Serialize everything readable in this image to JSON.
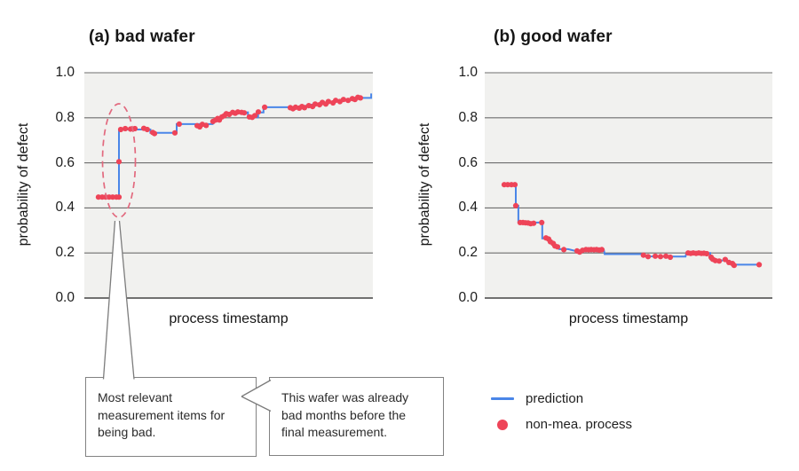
{
  "colors": {
    "prediction": "#4a86e8",
    "non_mea": "#ee4458",
    "highlight_ellipse": "#e2697e",
    "plot_background": "#f1f1ef",
    "gridline": "#6e6e6e",
    "baseline": "#5d5d5d",
    "callout_border": "#828282"
  },
  "legend": {
    "items": [
      {
        "label": "prediction",
        "marker": "line"
      },
      {
        "label": "non-mea. process",
        "marker": "dot"
      }
    ]
  },
  "callouts": [
    {
      "lines": [
        "Most relevant",
        "measurement items for",
        "being bad."
      ]
    },
    {
      "lines": [
        "This wafer was already",
        "bad months before the",
        "final measurement."
      ]
    }
  ],
  "chart_data": [
    {
      "id": "bad-wafer",
      "type": "line",
      "title": "(a) bad wafer",
      "xlabel": "process timestamp",
      "ylabel": "probability of defect",
      "ylim": [
        0.0,
        1.0
      ],
      "yticks": [
        0.0,
        0.2,
        0.4,
        0.6,
        0.8,
        1.0
      ],
      "ytick_labels": [
        "0.0",
        "0.2",
        "0.4",
        "0.6",
        "0.8",
        "1.0"
      ],
      "x_encoding": "fraction of process timeline (x axis unlabeled)",
      "grid": "horizontal",
      "annotation": "dashed ellipse highlighting early jump from 0.45 to 0.75",
      "series": [
        {
          "name": "prediction",
          "type": "step-line",
          "points": [
            [
              0.049,
              0.448
            ],
            [
              0.12,
              0.448
            ],
            [
              0.12,
              0.748
            ],
            [
              0.229,
              0.748
            ],
            [
              0.229,
              0.733
            ],
            [
              0.32,
              0.733
            ],
            [
              0.32,
              0.772
            ],
            [
              0.445,
              0.772
            ],
            [
              0.458,
              0.79
            ],
            [
              0.477,
              0.803
            ],
            [
              0.495,
              0.815
            ],
            [
              0.511,
              0.822
            ],
            [
              0.567,
              0.824
            ],
            [
              0.567,
              0.802
            ],
            [
              0.602,
              0.802
            ],
            [
              0.602,
              0.824
            ],
            [
              0.621,
              0.824
            ],
            [
              0.621,
              0.847
            ],
            [
              0.714,
              0.847
            ],
            [
              0.732,
              0.843
            ],
            [
              0.754,
              0.85
            ],
            [
              0.778,
              0.856
            ],
            [
              0.8,
              0.862
            ],
            [
              0.822,
              0.861
            ],
            [
              0.84,
              0.868
            ],
            [
              0.862,
              0.868
            ],
            [
              0.877,
              0.877
            ],
            [
              0.902,
              0.877
            ],
            [
              0.917,
              0.883
            ],
            [
              0.938,
              0.886
            ],
            [
              0.954,
              0.888
            ],
            [
              0.994,
              0.888
            ],
            [
              0.994,
              0.908
            ]
          ]
        },
        {
          "name": "non-mea. process",
          "type": "scatter",
          "points": [
            [
              0.049,
              0.448
            ],
            [
              0.062,
              0.448
            ],
            [
              0.074,
              0.448
            ],
            [
              0.086,
              0.448
            ],
            [
              0.098,
              0.448
            ],
            [
              0.111,
              0.448
            ],
            [
              0.12,
              0.448
            ],
            [
              0.12,
              0.605
            ],
            [
              0.126,
              0.748
            ],
            [
              0.142,
              0.752
            ],
            [
              0.16,
              0.75
            ],
            [
              0.175,
              0.752
            ],
            [
              0.206,
              0.753
            ],
            [
              0.218,
              0.748
            ],
            [
              0.237,
              0.735
            ],
            [
              0.243,
              0.73
            ],
            [
              0.314,
              0.733
            ],
            [
              0.329,
              0.772
            ],
            [
              0.391,
              0.765
            ],
            [
              0.4,
              0.76
            ],
            [
              0.409,
              0.771
            ],
            [
              0.422,
              0.766
            ],
            [
              0.446,
              0.784
            ],
            [
              0.455,
              0.79
            ],
            [
              0.462,
              0.797
            ],
            [
              0.468,
              0.79
            ],
            [
              0.477,
              0.804
            ],
            [
              0.486,
              0.81
            ],
            [
              0.492,
              0.818
            ],
            [
              0.502,
              0.815
            ],
            [
              0.514,
              0.824
            ],
            [
              0.523,
              0.82
            ],
            [
              0.532,
              0.826
            ],
            [
              0.545,
              0.824
            ],
            [
              0.554,
              0.822
            ],
            [
              0.572,
              0.804
            ],
            [
              0.582,
              0.802
            ],
            [
              0.591,
              0.81
            ],
            [
              0.603,
              0.826
            ],
            [
              0.625,
              0.847
            ],
            [
              0.714,
              0.845
            ],
            [
              0.723,
              0.84
            ],
            [
              0.732,
              0.847
            ],
            [
              0.745,
              0.843
            ],
            [
              0.754,
              0.85
            ],
            [
              0.763,
              0.845
            ],
            [
              0.778,
              0.854
            ],
            [
              0.791,
              0.85
            ],
            [
              0.8,
              0.861
            ],
            [
              0.815,
              0.858
            ],
            [
              0.825,
              0.868
            ],
            [
              0.837,
              0.861
            ],
            [
              0.846,
              0.872
            ],
            [
              0.862,
              0.866
            ],
            [
              0.871,
              0.877
            ],
            [
              0.886,
              0.872
            ],
            [
              0.898,
              0.881
            ],
            [
              0.914,
              0.877
            ],
            [
              0.929,
              0.885
            ],
            [
              0.938,
              0.881
            ],
            [
              0.948,
              0.891
            ],
            [
              0.957,
              0.888
            ]
          ]
        }
      ]
    },
    {
      "id": "good-wafer",
      "type": "line",
      "title": "(b) good wafer",
      "xlabel": "process timestamp",
      "ylabel": "probability of defect",
      "ylim": [
        0.0,
        1.0
      ],
      "yticks": [
        0.0,
        0.2,
        0.4,
        0.6,
        0.8,
        1.0
      ],
      "ytick_labels": [
        "0.0",
        "0.2",
        "0.4",
        "0.6",
        "0.8",
        "1.0"
      ],
      "x_encoding": "fraction of process timeline (x axis unlabeled)",
      "grid": "horizontal",
      "series": [
        {
          "name": "prediction",
          "type": "step-line",
          "points": [
            [
              0.068,
              0.503
            ],
            [
              0.108,
              0.503
            ],
            [
              0.108,
              0.41
            ],
            [
              0.117,
              0.41
            ],
            [
              0.117,
              0.335
            ],
            [
              0.151,
              0.335
            ],
            [
              0.16,
              0.33
            ],
            [
              0.17,
              0.335
            ],
            [
              0.2,
              0.335
            ],
            [
              0.2,
              0.265
            ],
            [
              0.219,
              0.265
            ],
            [
              0.228,
              0.25
            ],
            [
              0.238,
              0.24
            ],
            [
              0.244,
              0.231
            ],
            [
              0.253,
              0.227
            ],
            [
              0.259,
              0.217
            ],
            [
              0.29,
              0.217
            ],
            [
              0.321,
              0.207
            ],
            [
              0.336,
              0.204
            ],
            [
              0.346,
              0.215
            ],
            [
              0.414,
              0.215
            ],
            [
              0.417,
              0.195
            ],
            [
              0.546,
              0.195
            ],
            [
              0.552,
              0.185
            ],
            [
              0.698,
              0.184
            ],
            [
              0.701,
              0.2
            ],
            [
              0.784,
              0.2
            ],
            [
              0.784,
              0.172
            ],
            [
              0.821,
              0.165
            ],
            [
              0.84,
              0.172
            ],
            [
              0.852,
              0.158
            ],
            [
              0.867,
              0.148
            ],
            [
              0.963,
              0.148
            ]
          ]
        },
        {
          "name": "non-mea. process",
          "type": "scatter",
          "points": [
            [
              0.068,
              0.503
            ],
            [
              0.08,
              0.503
            ],
            [
              0.093,
              0.503
            ],
            [
              0.105,
              0.503
            ],
            [
              0.108,
              0.41
            ],
            [
              0.123,
              0.335
            ],
            [
              0.133,
              0.335
            ],
            [
              0.142,
              0.334
            ],
            [
              0.151,
              0.333
            ],
            [
              0.16,
              0.33
            ],
            [
              0.17,
              0.332
            ],
            [
              0.198,
              0.335
            ],
            [
              0.213,
              0.267
            ],
            [
              0.222,
              0.262
            ],
            [
              0.228,
              0.25
            ],
            [
              0.238,
              0.242
            ],
            [
              0.244,
              0.231
            ],
            [
              0.253,
              0.227
            ],
            [
              0.275,
              0.215
            ],
            [
              0.321,
              0.209
            ],
            [
              0.33,
              0.204
            ],
            [
              0.34,
              0.212
            ],
            [
              0.352,
              0.215
            ],
            [
              0.361,
              0.214
            ],
            [
              0.37,
              0.215
            ],
            [
              0.38,
              0.214
            ],
            [
              0.389,
              0.215
            ],
            [
              0.398,
              0.213
            ],
            [
              0.407,
              0.215
            ],
            [
              0.552,
              0.19
            ],
            [
              0.568,
              0.184
            ],
            [
              0.593,
              0.186
            ],
            [
              0.611,
              0.184
            ],
            [
              0.63,
              0.186
            ],
            [
              0.645,
              0.181
            ],
            [
              0.707,
              0.2
            ],
            [
              0.716,
              0.198
            ],
            [
              0.725,
              0.2
            ],
            [
              0.735,
              0.198
            ],
            [
              0.744,
              0.2
            ],
            [
              0.753,
              0.198
            ],
            [
              0.762,
              0.199
            ],
            [
              0.772,
              0.197
            ],
            [
              0.787,
              0.181
            ],
            [
              0.793,
              0.172
            ],
            [
              0.802,
              0.166
            ],
            [
              0.815,
              0.164
            ],
            [
              0.836,
              0.171
            ],
            [
              0.849,
              0.158
            ],
            [
              0.861,
              0.153
            ],
            [
              0.867,
              0.145
            ],
            [
              0.954,
              0.148
            ]
          ]
        }
      ]
    }
  ]
}
